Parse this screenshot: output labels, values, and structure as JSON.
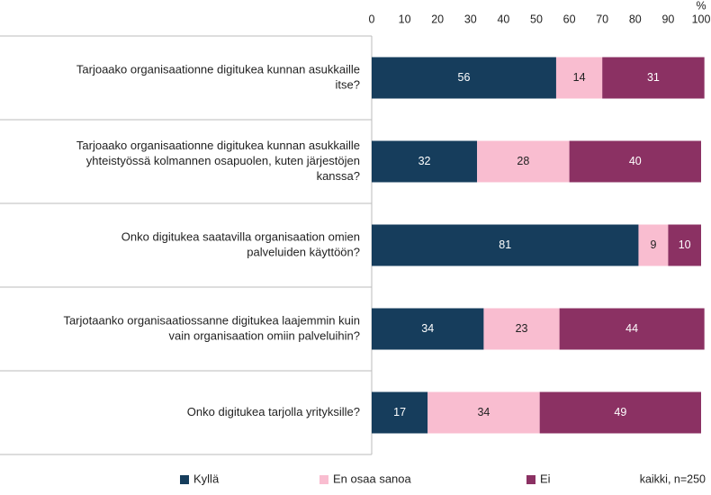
{
  "chart_data": {
    "type": "stacked-bar-horizontal",
    "categories": [
      [
        "Tarjoaako organisaationne digitukea kunnan asukkaille",
        "itse?"
      ],
      [
        "Tarjoaako organisaationne digitukea kunnan asukkaille",
        "yhteistyössä kolmannen osapuolen, kuten järjestöjen",
        "kanssa?"
      ],
      [
        "Onko digitukea saatavilla organisaation omien",
        "palveluiden käyttöön?"
      ],
      [
        "Tarjotaanko organisaatiossanne digitukea laajemmin kuin",
        "vain organisaation omiin palveluihin?"
      ],
      [
        "Onko digitukea tarjolla yrityksille?"
      ]
    ],
    "series": [
      {
        "name": "Kyllä",
        "color": "#163d5c",
        "label_color": "#ffffff",
        "values": [
          56,
          32,
          81,
          34,
          17
        ]
      },
      {
        "name": "En osaa sanoa",
        "color": "#f9bdd0",
        "label_color": "#222222",
        "values": [
          14,
          28,
          9,
          23,
          34
        ]
      },
      {
        "name": "Ei",
        "color": "#8b3163",
        "label_color": "#ffffff",
        "values": [
          31,
          40,
          10,
          44,
          49
        ]
      }
    ],
    "xlim": [
      0,
      100
    ],
    "xticks": [
      0,
      10,
      20,
      30,
      40,
      50,
      60,
      70,
      80,
      90,
      100
    ],
    "x_unit": "%",
    "note": "kaikki, n=250",
    "legend": "bottom"
  }
}
